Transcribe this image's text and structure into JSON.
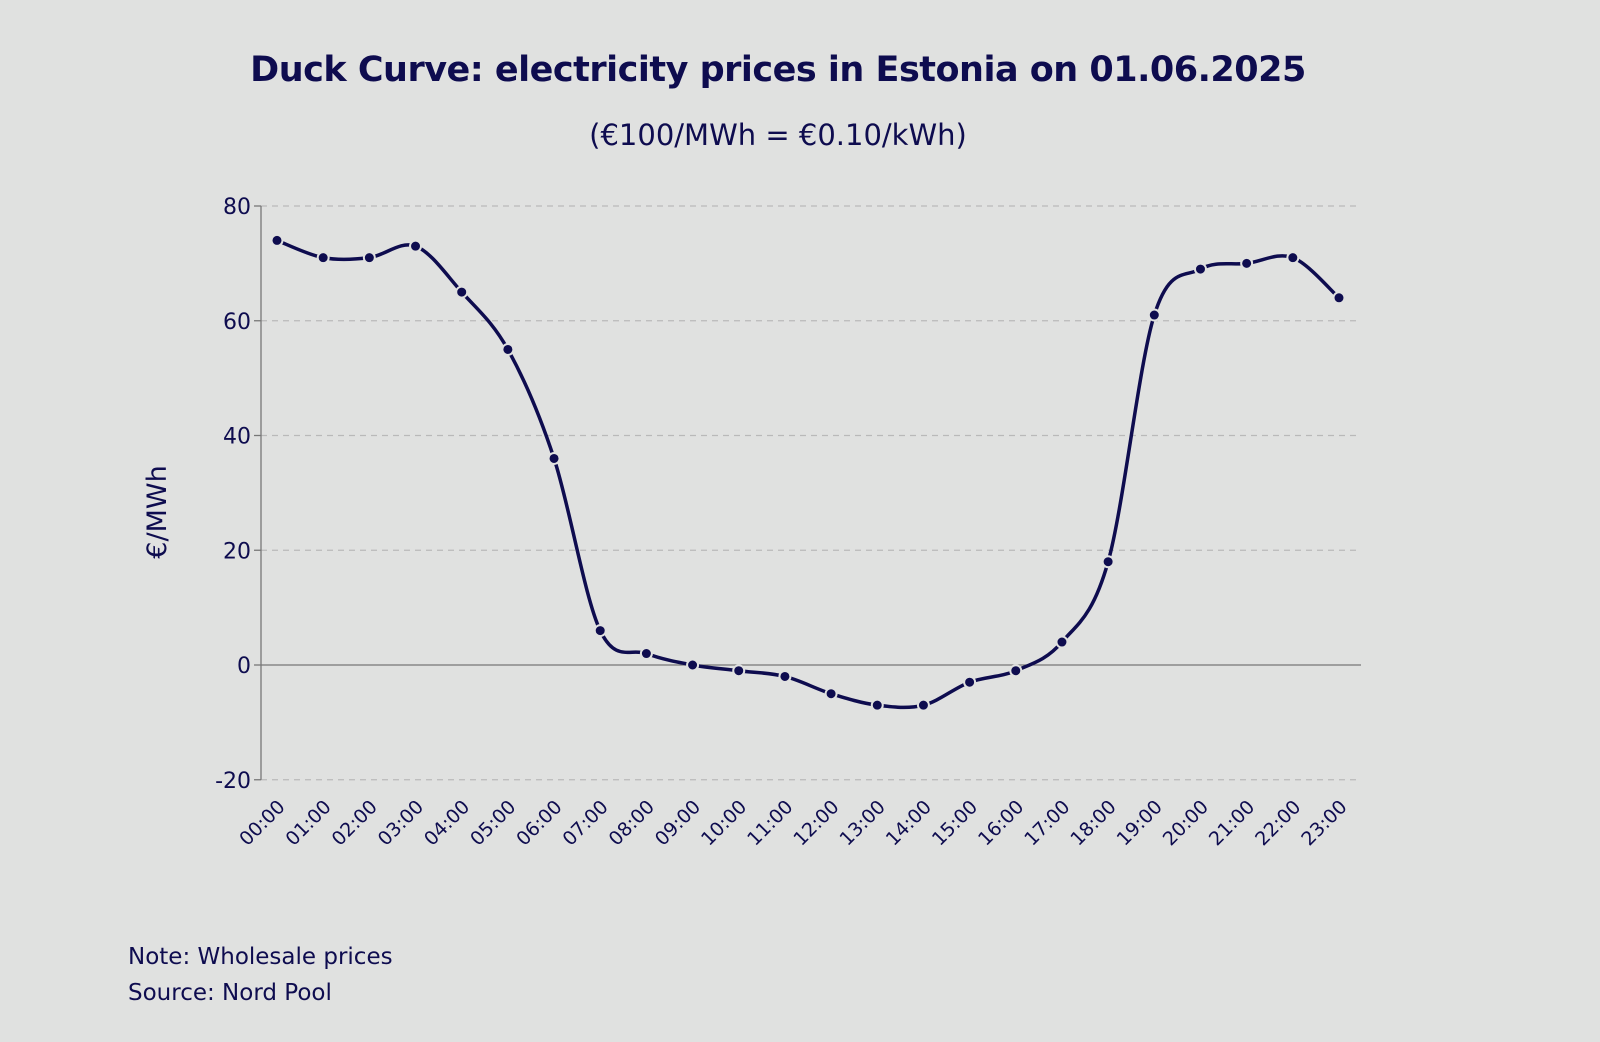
{
  "chart_data": {
    "type": "line",
    "title": "Duck Curve: electricity prices in Estonia on 01.06.2025",
    "subtitle": "(€100/MWh = €0.10/kWh)",
    "xlabel": "",
    "ylabel": "€/MWh",
    "ylim": [
      -20,
      80
    ],
    "yticks": [
      -20,
      0,
      20,
      40,
      60,
      80
    ],
    "grid": "horizontal dashed",
    "categories": [
      "00:00",
      "01:00",
      "02:00",
      "03:00",
      "04:00",
      "05:00",
      "06:00",
      "07:00",
      "08:00",
      "09:00",
      "10:00",
      "11:00",
      "12:00",
      "13:00",
      "14:00",
      "15:00",
      "16:00",
      "17:00",
      "18:00",
      "19:00",
      "20:00",
      "21:00",
      "22:00",
      "23:00"
    ],
    "series": [
      {
        "name": "Price",
        "color": "#0e0c4f",
        "values": [
          74,
          71,
          71,
          73,
          65,
          55,
          36,
          6,
          2,
          0,
          -1,
          -2,
          -5,
          -7,
          -7,
          -3,
          -1,
          4,
          18,
          61,
          69,
          70,
          71,
          64
        ]
      }
    ]
  },
  "notes": {
    "note": "Note: Wholesale prices",
    "source": "Source: Nord Pool"
  }
}
